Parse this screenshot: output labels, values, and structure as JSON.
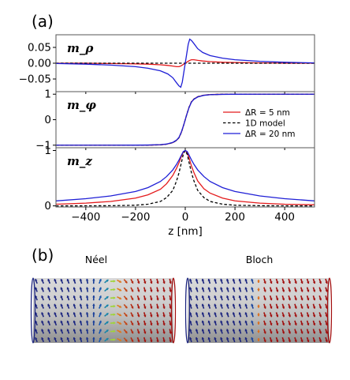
{
  "figure": {
    "panel_a_tag": "(a)",
    "panel_b_tag": "(b)",
    "neel_label": "Néel",
    "bloch_label": "Bloch"
  },
  "chart_data": [
    {
      "type": "line",
      "subplot": "m_rho",
      "ylabel": "m_ρ",
      "xlim": [
        -520,
        520
      ],
      "ylim": [
        -0.09,
        0.09
      ],
      "yticks": [
        0.05,
        0.0,
        -0.05
      ],
      "ytick_labels": [
        "0.05",
        "0.00",
        "−0.05"
      ],
      "series": [
        {
          "name": "ΔR = 5 nm",
          "color": "#e41a1c",
          "style": "solid",
          "x": [
            -520,
            -400,
            -300,
            -200,
            -150,
            -100,
            -70,
            -50,
            -35,
            -25,
            -18,
            -12,
            -6,
            0,
            6,
            12,
            18,
            25,
            35,
            50,
            70,
            100,
            150,
            200,
            300,
            400,
            520
          ],
          "y": [
            0.0,
            0.0,
            -0.001,
            -0.002,
            -0.003,
            -0.005,
            -0.007,
            -0.009,
            -0.011,
            -0.011,
            -0.009,
            -0.006,
            -0.003,
            0.0,
            0.003,
            0.006,
            0.009,
            0.011,
            0.011,
            0.009,
            0.007,
            0.005,
            0.003,
            0.002,
            0.001,
            0.0,
            0.0
          ]
        },
        {
          "name": "1D model",
          "color": "#000000",
          "style": "dashed",
          "x": [
            -520,
            520
          ],
          "y": [
            0.0,
            0.0
          ]
        },
        {
          "name": "ΔR = 20 nm",
          "color": "#1f1fd6",
          "style": "solid",
          "x": [
            -520,
            -400,
            -300,
            -200,
            -150,
            -100,
            -70,
            -50,
            -35,
            -25,
            -18,
            -12,
            -6,
            0,
            6,
            12,
            18,
            25,
            35,
            50,
            70,
            100,
            150,
            200,
            300,
            400,
            520
          ],
          "y": [
            -0.001,
            -0.003,
            -0.006,
            -0.011,
            -0.016,
            -0.024,
            -0.034,
            -0.046,
            -0.062,
            -0.072,
            -0.076,
            -0.06,
            -0.03,
            0.0,
            0.03,
            0.06,
            0.076,
            0.072,
            0.062,
            0.046,
            0.034,
            0.024,
            0.016,
            0.011,
            0.006,
            0.003,
            0.001
          ]
        }
      ]
    },
    {
      "type": "line",
      "subplot": "m_phi",
      "ylabel": "m_φ",
      "xlim": [
        -520,
        520
      ],
      "ylim": [
        -1.1,
        1.1
      ],
      "yticks": [
        1,
        0,
        -1
      ],
      "ytick_labels": [
        "1",
        "0",
        "−1"
      ],
      "series": [
        {
          "name": "ΔR = 5 nm",
          "color": "#e41a1c",
          "style": "solid",
          "x": [
            -520,
            -300,
            -200,
            -150,
            -100,
            -75,
            -50,
            -35,
            -25,
            -15,
            -5,
            0,
            5,
            15,
            25,
            35,
            50,
            75,
            100,
            150,
            200,
            300,
            520
          ],
          "y": [
            -1,
            -1,
            -0.999,
            -0.997,
            -0.985,
            -0.96,
            -0.9,
            -0.81,
            -0.7,
            -0.48,
            -0.17,
            0,
            0.17,
            0.48,
            0.7,
            0.81,
            0.9,
            0.96,
            0.985,
            0.997,
            0.999,
            1,
            1
          ]
        },
        {
          "name": "1D model",
          "color": "#000000",
          "style": "dashed",
          "x": [
            -520,
            -300,
            -200,
            -150,
            -100,
            -75,
            -50,
            -35,
            -25,
            -15,
            -5,
            0,
            5,
            15,
            25,
            35,
            50,
            75,
            100,
            150,
            200,
            300,
            520
          ],
          "y": [
            -1,
            -1,
            -0.999,
            -0.997,
            -0.985,
            -0.96,
            -0.9,
            -0.81,
            -0.7,
            -0.48,
            -0.17,
            0,
            0.17,
            0.48,
            0.7,
            0.81,
            0.9,
            0.96,
            0.985,
            0.997,
            0.999,
            1,
            1
          ]
        },
        {
          "name": "ΔR = 20 nm",
          "color": "#1f1fd6",
          "style": "solid",
          "x": [
            -520,
            -300,
            -200,
            -150,
            -100,
            -75,
            -50,
            -35,
            -25,
            -15,
            -5,
            0,
            5,
            15,
            25,
            35,
            50,
            75,
            100,
            150,
            200,
            300,
            520
          ],
          "y": [
            -1,
            -0.999,
            -0.997,
            -0.993,
            -0.98,
            -0.955,
            -0.89,
            -0.8,
            -0.69,
            -0.47,
            -0.17,
            0,
            0.17,
            0.47,
            0.69,
            0.8,
            0.89,
            0.955,
            0.98,
            0.993,
            0.997,
            0.999,
            1
          ]
        }
      ]
    },
    {
      "type": "line",
      "subplot": "m_z",
      "ylabel": "m_z",
      "xlabel": "z  [nm]",
      "xlim": [
        -520,
        520
      ],
      "ylim": [
        -0.02,
        1.05
      ],
      "xticks": [
        -400,
        -200,
        0,
        200,
        400
      ],
      "xtick_labels": [
        "−400",
        "−200",
        "0",
        "200",
        "400"
      ],
      "yticks": [
        1,
        0
      ],
      "ytick_labels": [
        "1",
        "0"
      ],
      "series": [
        {
          "name": "ΔR = 5 nm",
          "color": "#e41a1c",
          "style": "solid",
          "x": [
            -520,
            -400,
            -300,
            -200,
            -150,
            -100,
            -75,
            -50,
            -35,
            -25,
            -15,
            -8,
            0,
            8,
            15,
            25,
            35,
            50,
            75,
            100,
            150,
            200,
            300,
            400,
            520
          ],
          "y": [
            0.03,
            0.05,
            0.08,
            0.14,
            0.2,
            0.3,
            0.4,
            0.55,
            0.68,
            0.78,
            0.9,
            0.97,
            1.0,
            0.96,
            0.87,
            0.72,
            0.6,
            0.45,
            0.31,
            0.23,
            0.14,
            0.09,
            0.05,
            0.03,
            0.02
          ]
        },
        {
          "name": "1D model",
          "color": "#000000",
          "style": "dashed",
          "x": [
            -520,
            -400,
            -300,
            -200,
            -150,
            -100,
            -75,
            -50,
            -35,
            -25,
            -15,
            -8,
            0,
            8,
            15,
            25,
            35,
            50,
            75,
            100,
            150,
            200,
            300,
            400,
            520
          ],
          "y": [
            0.0,
            0.001,
            0.003,
            0.012,
            0.03,
            0.08,
            0.15,
            0.28,
            0.45,
            0.6,
            0.79,
            0.93,
            1.0,
            0.93,
            0.79,
            0.6,
            0.45,
            0.28,
            0.15,
            0.08,
            0.03,
            0.012,
            0.003,
            0.001,
            0.0
          ]
        },
        {
          "name": "ΔR = 20 nm",
          "color": "#1f1fd6",
          "style": "solid",
          "x": [
            -520,
            -400,
            -300,
            -200,
            -150,
            -100,
            -75,
            -50,
            -35,
            -25,
            -15,
            -8,
            0,
            8,
            15,
            25,
            35,
            50,
            75,
            100,
            150,
            200,
            300,
            400,
            520
          ],
          "y": [
            0.09,
            0.13,
            0.18,
            0.26,
            0.33,
            0.44,
            0.53,
            0.65,
            0.75,
            0.83,
            0.92,
            0.98,
            1.0,
            0.98,
            0.92,
            0.83,
            0.75,
            0.65,
            0.53,
            0.44,
            0.33,
            0.26,
            0.18,
            0.13,
            0.09
          ]
        }
      ]
    }
  ],
  "legend": {
    "placement": "right of m_phi subplot",
    "entries": [
      {
        "label": "ΔR = 5 nm",
        "color": "#e41a1c",
        "style": "solid"
      },
      {
        "label": "1D model",
        "color": "#000000",
        "style": "dashed"
      },
      {
        "label": "ΔR = 20 nm",
        "color": "#1f1fd6",
        "style": "solid"
      }
    ]
  },
  "colors": {
    "red": "#e41a1c",
    "blue": "#1f1fd6",
    "black": "#000000",
    "arrow_blue": "#1a237e",
    "arrow_red": "#a10d0d",
    "cylinder_gray": "#c8c8c8"
  }
}
